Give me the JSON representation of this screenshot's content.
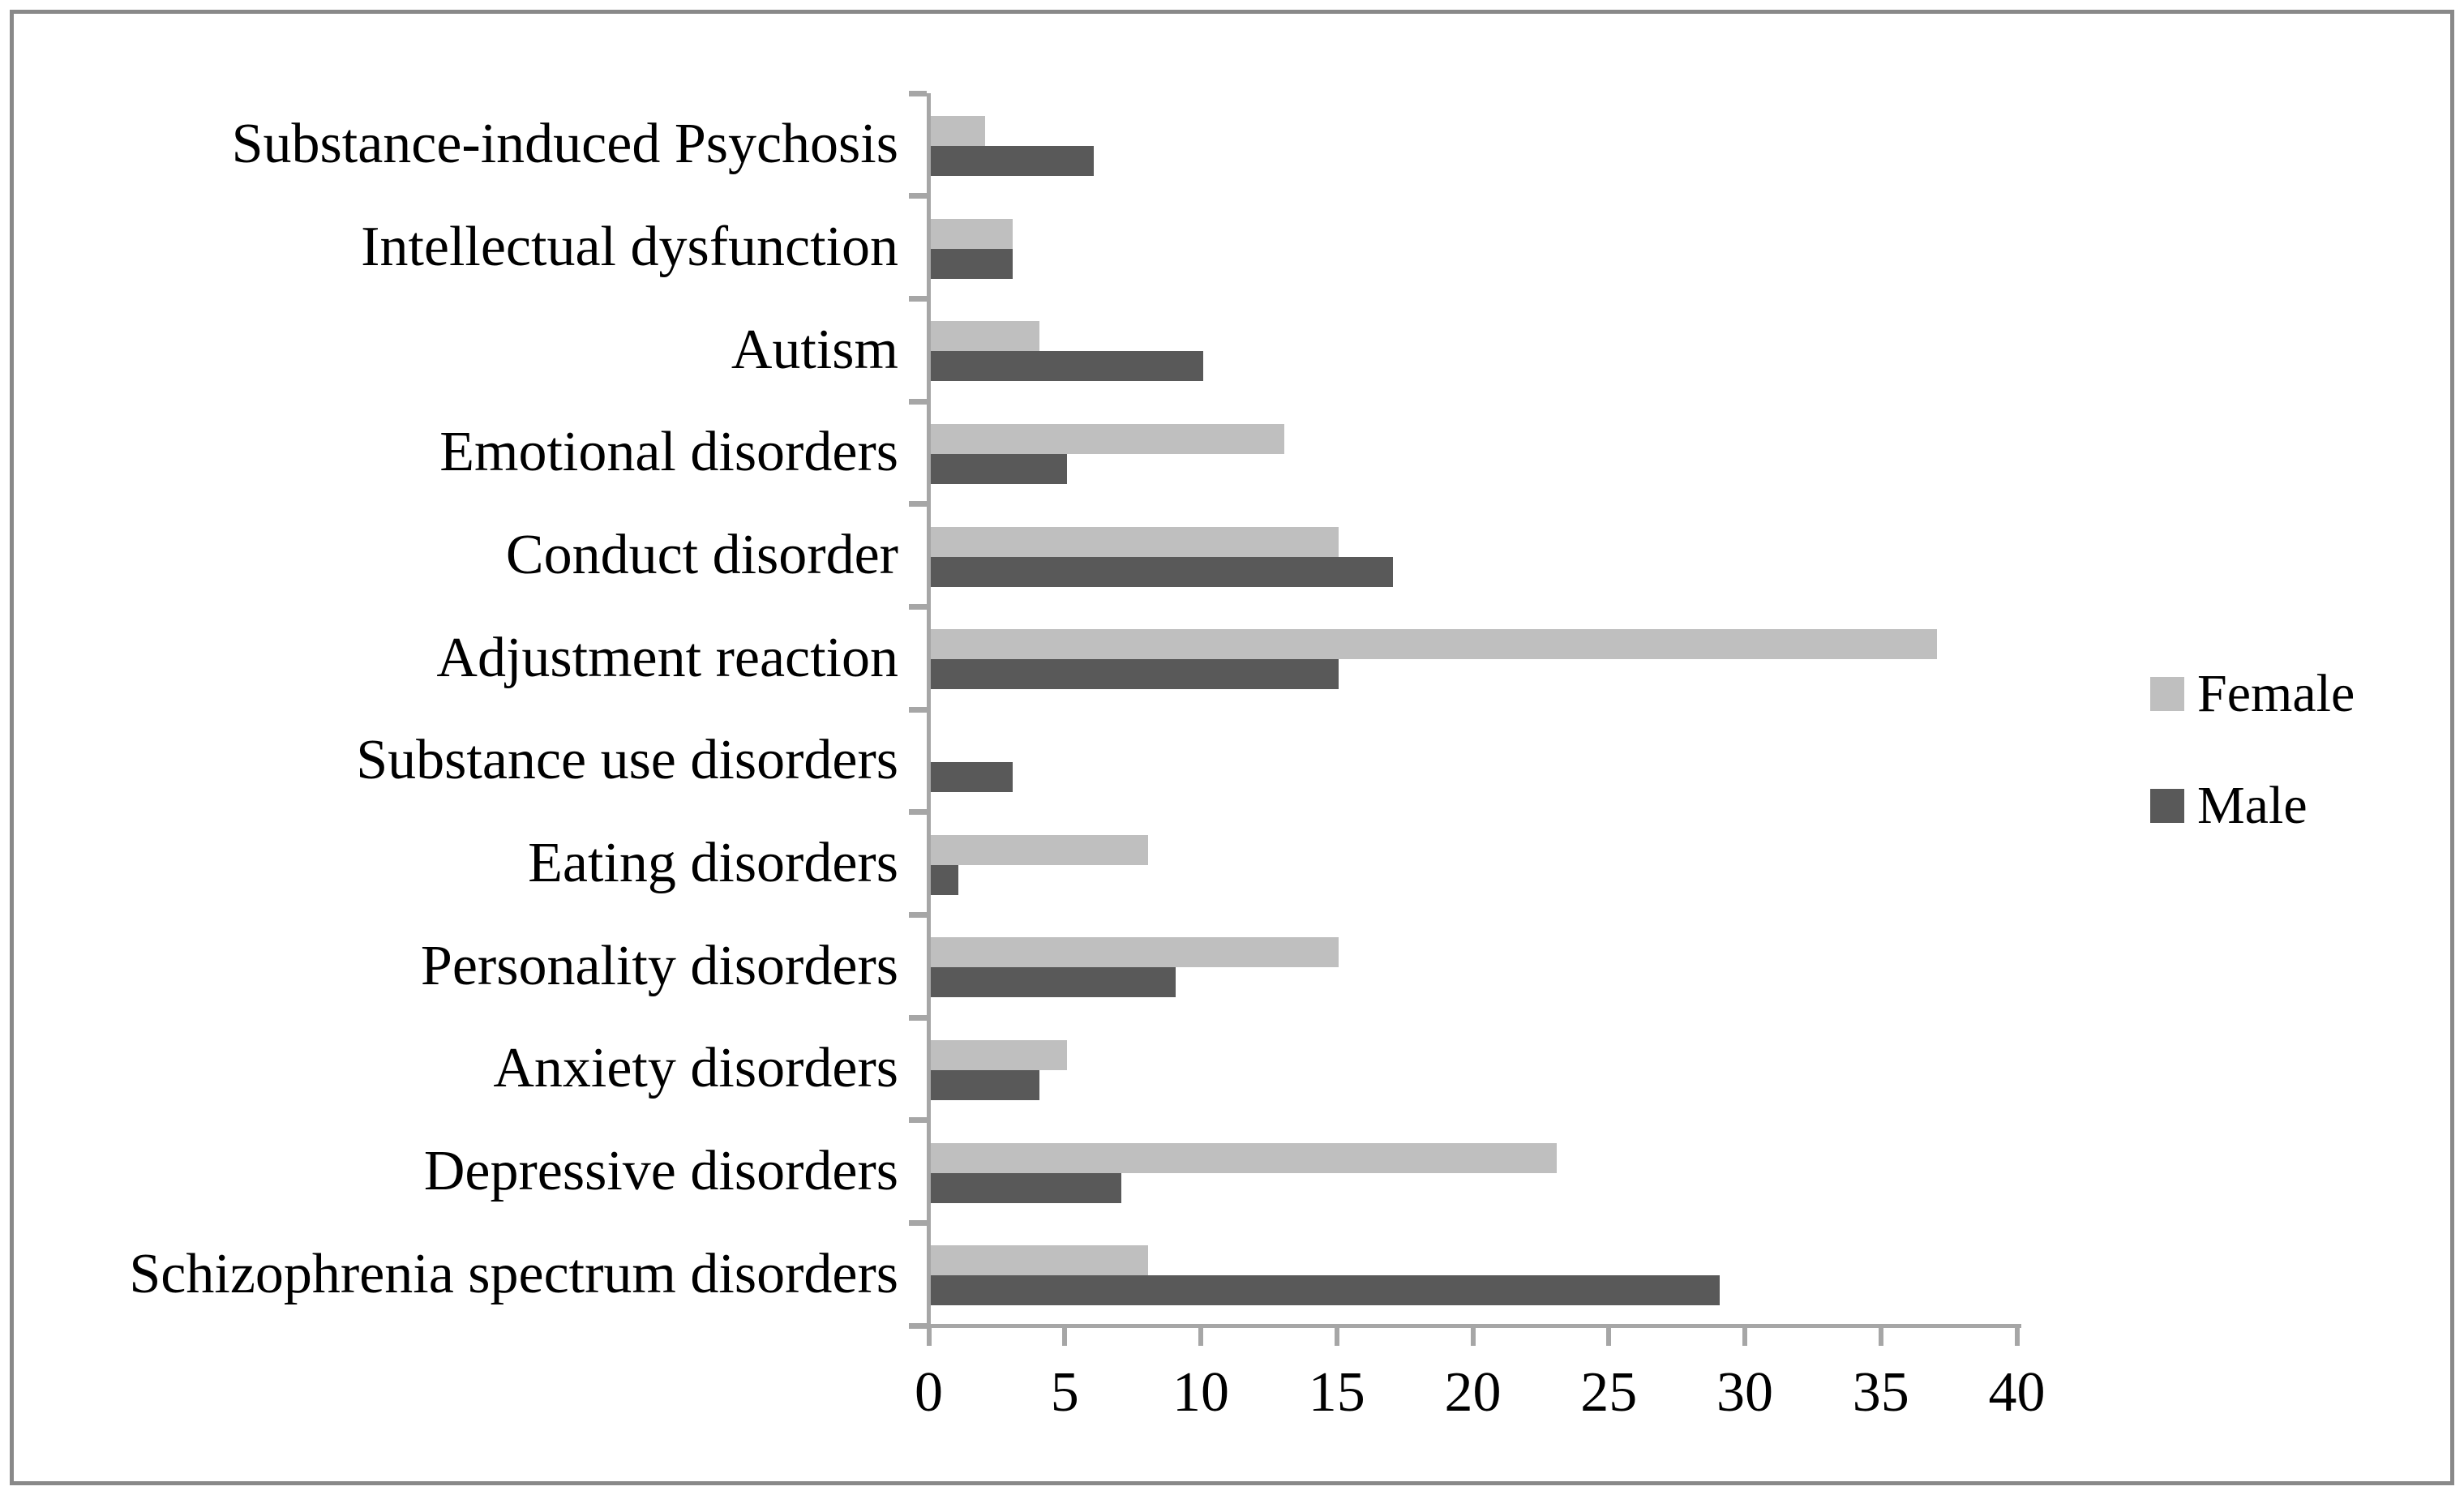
{
  "frame": {
    "border_color": "#898989",
    "background_color": "#ffffff"
  },
  "chart_data": {
    "type": "bar",
    "orientation": "horizontal",
    "title": "",
    "xlabel": "",
    "ylabel": "",
    "categories": [
      "Substance-induced Psychosis",
      "Intellectual dysfunction",
      "Autism",
      "Emotional disorders",
      "Conduct disorder",
      "Adjustment reaction",
      "Substance use disorders",
      "Eating disorders",
      "Personality disorders",
      "Anxiety disorders",
      "Depressive disorders",
      "Schizophrenia spectrum disorders"
    ],
    "series": [
      {
        "name": "Female",
        "color": "#BFBFBF",
        "values": [
          2,
          3,
          4,
          13,
          15,
          37,
          0,
          8,
          15,
          5,
          23,
          8
        ]
      },
      {
        "name": "Male",
        "color": "#595959",
        "values": [
          6,
          3,
          10,
          5,
          17,
          15,
          3,
          1,
          9,
          4,
          7,
          29
        ]
      }
    ],
    "xlim": [
      0,
      40
    ],
    "x_ticks": [
      0,
      5,
      10,
      15,
      20,
      25,
      30,
      35,
      40
    ],
    "grid": false,
    "legend_position": "right",
    "axis_color": "#A6A6A6"
  }
}
